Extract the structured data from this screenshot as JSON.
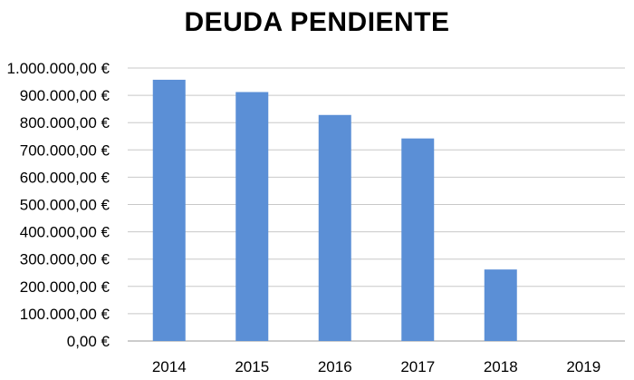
{
  "chart_data": {
    "type": "bar",
    "title": "DEUDA PENDIENTE",
    "categories": [
      "2014",
      "2015",
      "2016",
      "2017",
      "2018",
      "2019"
    ],
    "values": [
      957000,
      912000,
      828000,
      742000,
      262000,
      0
    ],
    "ylim": [
      0,
      1000000
    ],
    "yticks": [
      0,
      100000,
      200000,
      300000,
      400000,
      500000,
      600000,
      700000,
      800000,
      900000,
      1000000
    ],
    "ytick_labels": [
      "0,00 €",
      "100.000,00 €",
      "200.000,00 €",
      "300.000,00 €",
      "400.000,00 €",
      "500.000,00 €",
      "600.000,00 €",
      "700.000,00 €",
      "800.000,00 €",
      "900.000,00 €",
      "1.000.000,00 €"
    ],
    "xlabel": "",
    "ylabel": "",
    "grid": true,
    "legend": "none",
    "colors": {
      "bar": "#5B8FD6",
      "grid": "#C8C8C8",
      "axis": "#9A9A9A"
    }
  }
}
